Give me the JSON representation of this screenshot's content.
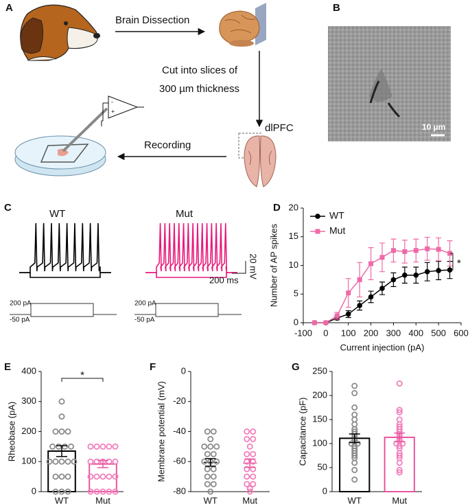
{
  "panel_labels": [
    "A",
    "B",
    "C",
    "D",
    "E",
    "F",
    "G"
  ],
  "diagram": {
    "dissection": "Brain Dissection",
    "cut_lines": [
      "Cut into slices of",
      "300 µm thickness"
    ],
    "region": "dlPFC",
    "recording": "Recording"
  },
  "image": {
    "scale_bar": "10 µm"
  },
  "traces": {
    "groups": [
      "WT",
      "Mut"
    ],
    "scale_voltage": "20 mV",
    "scale_time": "200 ms",
    "protocol_labels": [
      "200 pA",
      "-50 pA"
    ]
  },
  "chart_data": [
    {
      "type": "line",
      "x_label": "Current injection (pA)",
      "y_label": "Number of AP spikes",
      "x": [
        -50,
        0,
        50,
        100,
        150,
        200,
        250,
        300,
        350,
        400,
        450,
        500,
        550
      ],
      "series": [
        {
          "name": "WT",
          "color": "#000000",
          "marker": "circle",
          "values": [
            0,
            0,
            0.8,
            1.5,
            3,
            4.5,
            6,
            7.5,
            8.3,
            8.3,
            8.9,
            9.1,
            9.2
          ],
          "errors": [
            0,
            0,
            0.3,
            0.6,
            0.8,
            1,
            1.1,
            1.2,
            1.4,
            1.4,
            1.6,
            1.6,
            1.5
          ]
        },
        {
          "name": "Mut",
          "color": "#ee6aa7",
          "marker": "square",
          "values": [
            0,
            0,
            1.2,
            5.2,
            7.5,
            10.3,
            11.4,
            12.6,
            12.4,
            12.6,
            12.9,
            12.8,
            12.1
          ],
          "errors": [
            0,
            0,
            0.6,
            2.5,
            3,
            2.8,
            2.5,
            2,
            2,
            2,
            2,
            2,
            2.2
          ]
        }
      ],
      "xlim": [
        -100,
        600
      ],
      "xticks": [
        -100,
        0,
        100,
        200,
        300,
        400,
        500,
        600
      ],
      "ylim": [
        0,
        20
      ],
      "yticks": [
        0,
        5,
        10,
        15,
        20
      ],
      "legend": "upper left",
      "annotation": "*"
    },
    {
      "type": "bar",
      "y_label": "Rheobase (pA)",
      "categories": [
        "WT",
        "Mut"
      ],
      "values": [
        135,
        92
      ],
      "errors": [
        18,
        12
      ],
      "points": [
        [
          300,
          250,
          200,
          200,
          200,
          150,
          150,
          150,
          150,
          100,
          100,
          100,
          100,
          100,
          50,
          50,
          50,
          0,
          0,
          0
        ],
        [
          150,
          150,
          150,
          150,
          150,
          100,
          100,
          100,
          100,
          100,
          50,
          50,
          50,
          50,
          50,
          0,
          0,
          0,
          0,
          0
        ]
      ],
      "colors": [
        "#000000",
        "#e8559d"
      ],
      "point_colors": [
        "#8a8a8a",
        "#f27fbc"
      ],
      "bars": true,
      "ylim": [
        0,
        400
      ],
      "yticks": [
        0,
        100,
        200,
        300,
        400
      ],
      "annotation": "*"
    },
    {
      "type": "bar",
      "y_label": "Membrane potential (mV)",
      "categories": [
        "WT",
        "Mut"
      ],
      "values": [
        -60.5,
        -61
      ],
      "errors": [
        2.5,
        2.8
      ],
      "points": [
        [
          -40,
          -40,
          -45,
          -50,
          -50,
          -50,
          -55,
          -55,
          -60,
          -60,
          -60,
          -65,
          -65,
          -70,
          -70,
          -75,
          -75,
          -80
        ],
        [
          -40,
          -40,
          -45,
          -45,
          -50,
          -55,
          -55,
          -60,
          -60,
          -65,
          -65,
          -70,
          -70,
          -75,
          -75,
          -78,
          -80
        ]
      ],
      "colors": [
        "#000000",
        "#e8559d"
      ],
      "point_colors": [
        "#8a8a8a",
        "#f27fbc"
      ],
      "bars": false,
      "ylim": [
        -80,
        0
      ],
      "yticks": [
        0,
        -20,
        -40,
        -60,
        -80
      ]
    },
    {
      "type": "bar",
      "y_label": "Capacitance (pF)",
      "categories": [
        "WT",
        "Mut"
      ],
      "values": [
        111,
        113
      ],
      "errors": [
        9,
        9
      ],
      "points": [
        [
          220,
          205,
          175,
          160,
          150,
          140,
          130,
          125,
          120,
          115,
          110,
          105,
          100,
          100,
          95,
          90,
          85,
          80,
          75,
          70,
          60,
          45,
          25
        ],
        [
          225,
          170,
          165,
          150,
          140,
          135,
          130,
          125,
          120,
          115,
          110,
          105,
          100,
          100,
          95,
          90,
          80,
          75,
          70,
          60,
          45,
          40
        ]
      ],
      "colors": [
        "#000000",
        "#e8559d"
      ],
      "point_colors": [
        "#8a8a8a",
        "#f27fbc"
      ],
      "bars": true,
      "ylim": [
        0,
        250
      ],
      "yticks": [
        0,
        50,
        100,
        150,
        200,
        250
      ]
    }
  ]
}
